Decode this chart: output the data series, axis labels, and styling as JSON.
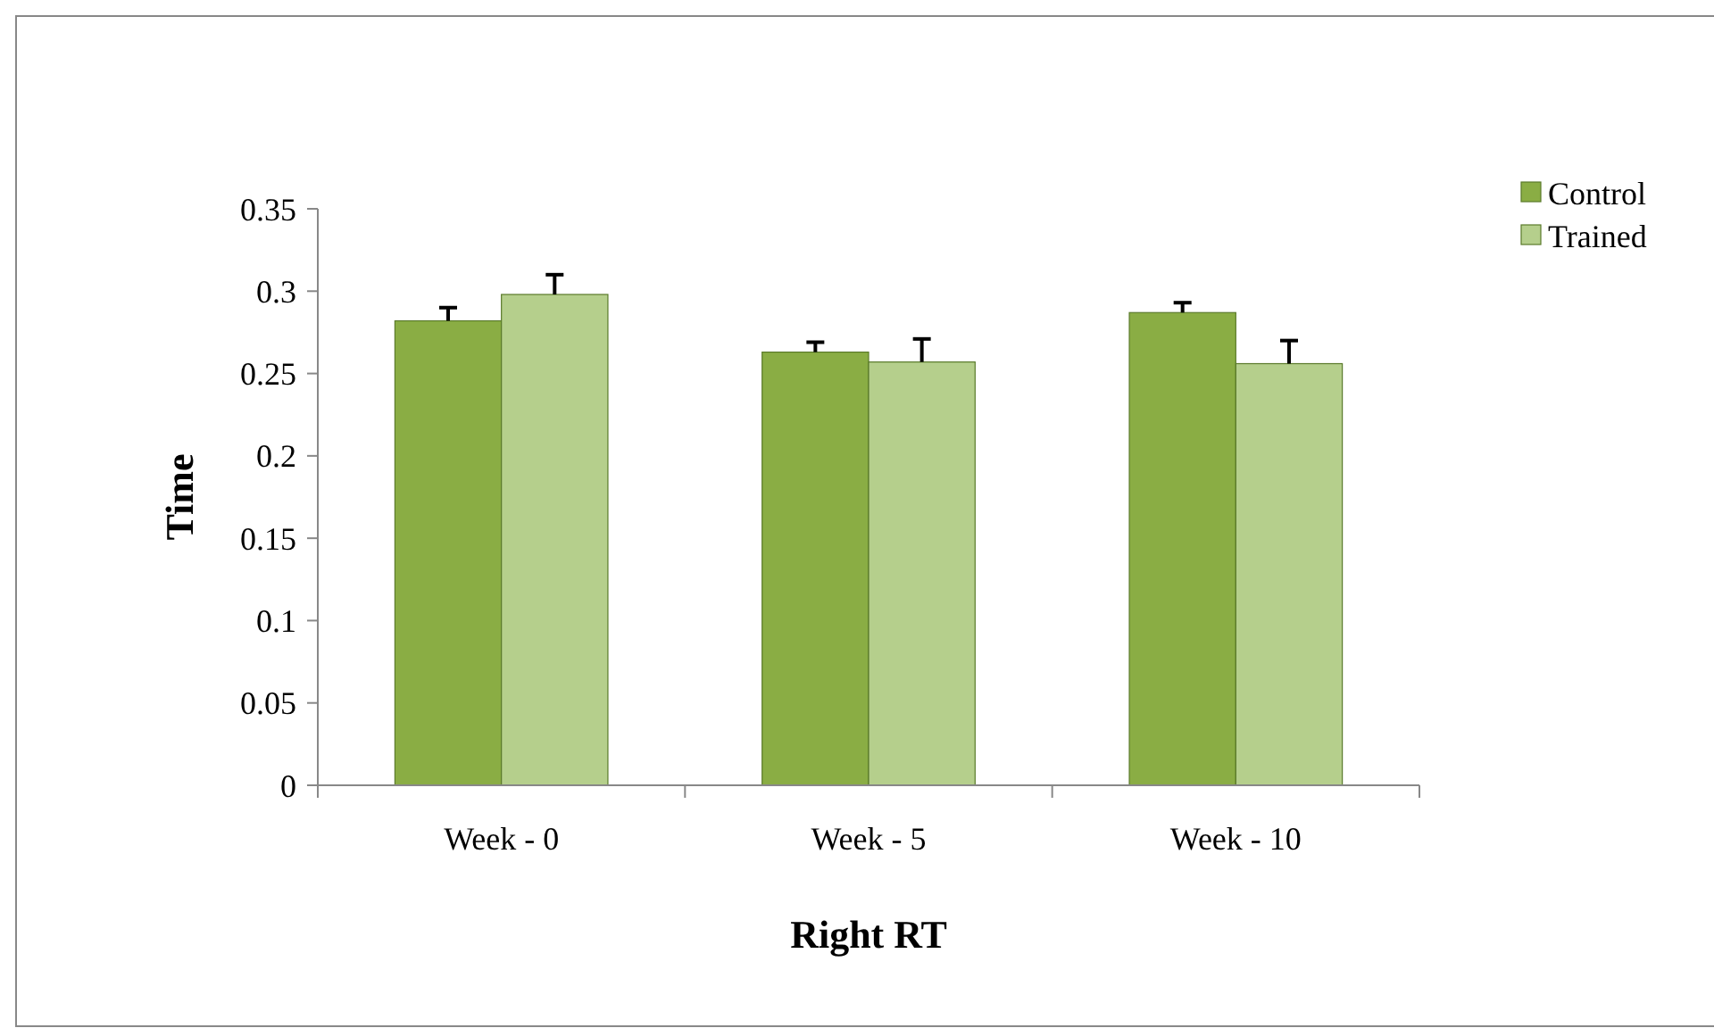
{
  "chart_data": {
    "type": "bar",
    "xlabel": "Right RT",
    "ylabel": "Time",
    "categories": [
      "Week - 0",
      "Week - 5",
      "Week - 10"
    ],
    "series": [
      {
        "name": "Control",
        "color": "#8aad44",
        "values": [
          0.282,
          0.263,
          0.287
        ],
        "errors": [
          0.008,
          0.006,
          0.006
        ]
      },
      {
        "name": "Trained",
        "color": "#b5cf8c",
        "values": [
          0.298,
          0.257,
          0.256
        ],
        "errors": [
          0.012,
          0.014,
          0.014
        ]
      }
    ],
    "ylim": [
      0,
      0.35
    ],
    "yticks": [
      0,
      0.05,
      0.1,
      0.15,
      0.2,
      0.25,
      0.3,
      0.35
    ],
    "grid": false,
    "legend": "top right"
  }
}
